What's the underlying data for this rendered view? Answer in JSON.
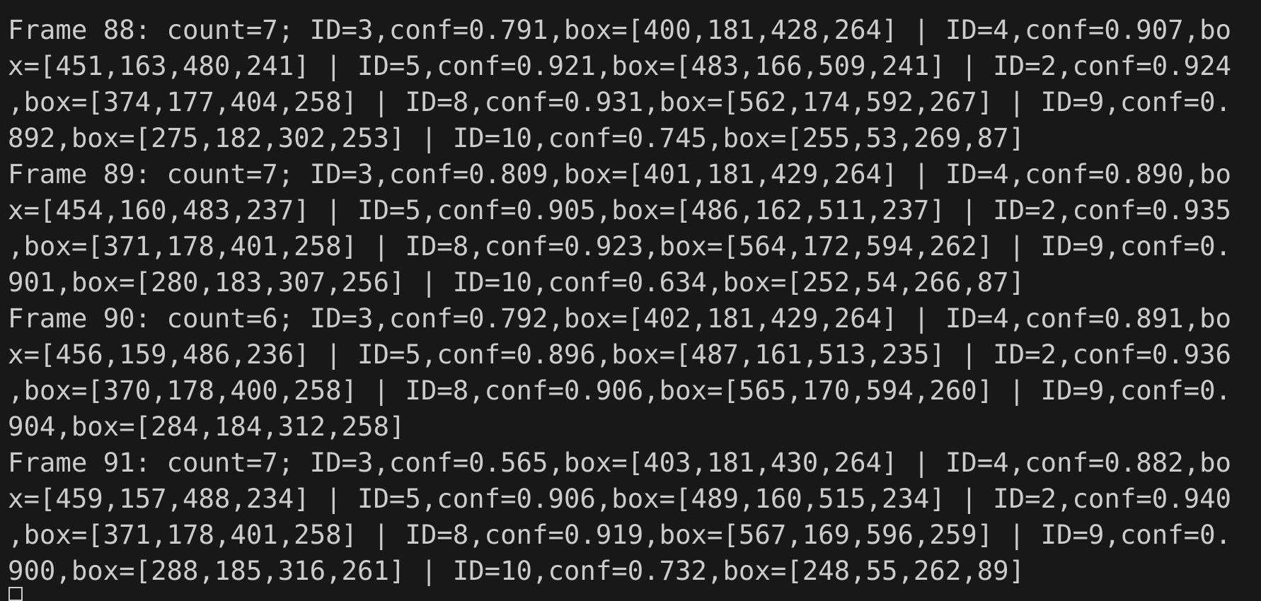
{
  "terminal": {
    "lines": [
      "Frame 88: count=7; ID=3,conf=0.791,box=[400,181,428,264] | ID=4,conf=0.907,bo",
      "x=[451,163,480,241] | ID=5,conf=0.921,box=[483,166,509,241] | ID=2,conf=0.924",
      ",box=[374,177,404,258] | ID=8,conf=0.931,box=[562,174,592,267] | ID=9,conf=0.",
      "892,box=[275,182,302,253] | ID=10,conf=0.745,box=[255,53,269,87]",
      "Frame 89: count=7; ID=3,conf=0.809,box=[401,181,429,264] | ID=4,conf=0.890,bo",
      "x=[454,160,483,237] | ID=5,conf=0.905,box=[486,162,511,237] | ID=2,conf=0.935",
      ",box=[371,178,401,258] | ID=8,conf=0.923,box=[564,172,594,262] | ID=9,conf=0.",
      "901,box=[280,183,307,256] | ID=10,conf=0.634,box=[252,54,266,87]",
      "Frame 90: count=6; ID=3,conf=0.792,box=[402,181,429,264] | ID=4,conf=0.891,bo",
      "x=[456,159,486,236] | ID=5,conf=0.896,box=[487,161,513,235] | ID=2,conf=0.936",
      ",box=[370,178,400,258] | ID=8,conf=0.906,box=[565,170,594,260] | ID=9,conf=0.",
      "904,box=[284,184,312,258]",
      "Frame 91: count=7; ID=3,conf=0.565,box=[403,181,430,264] | ID=4,conf=0.882,bo",
      "x=[459,157,488,234] | ID=5,conf=0.906,box=[489,160,515,234] | ID=2,conf=0.940",
      ",box=[371,178,401,258] | ID=8,conf=0.919,box=[567,169,596,259] | ID=9,conf=0.",
      "900,box=[288,185,316,261] | ID=10,conf=0.732,box=[248,55,262,89]"
    ],
    "colors": {
      "background": "#181818",
      "text": "#cccccc"
    }
  }
}
